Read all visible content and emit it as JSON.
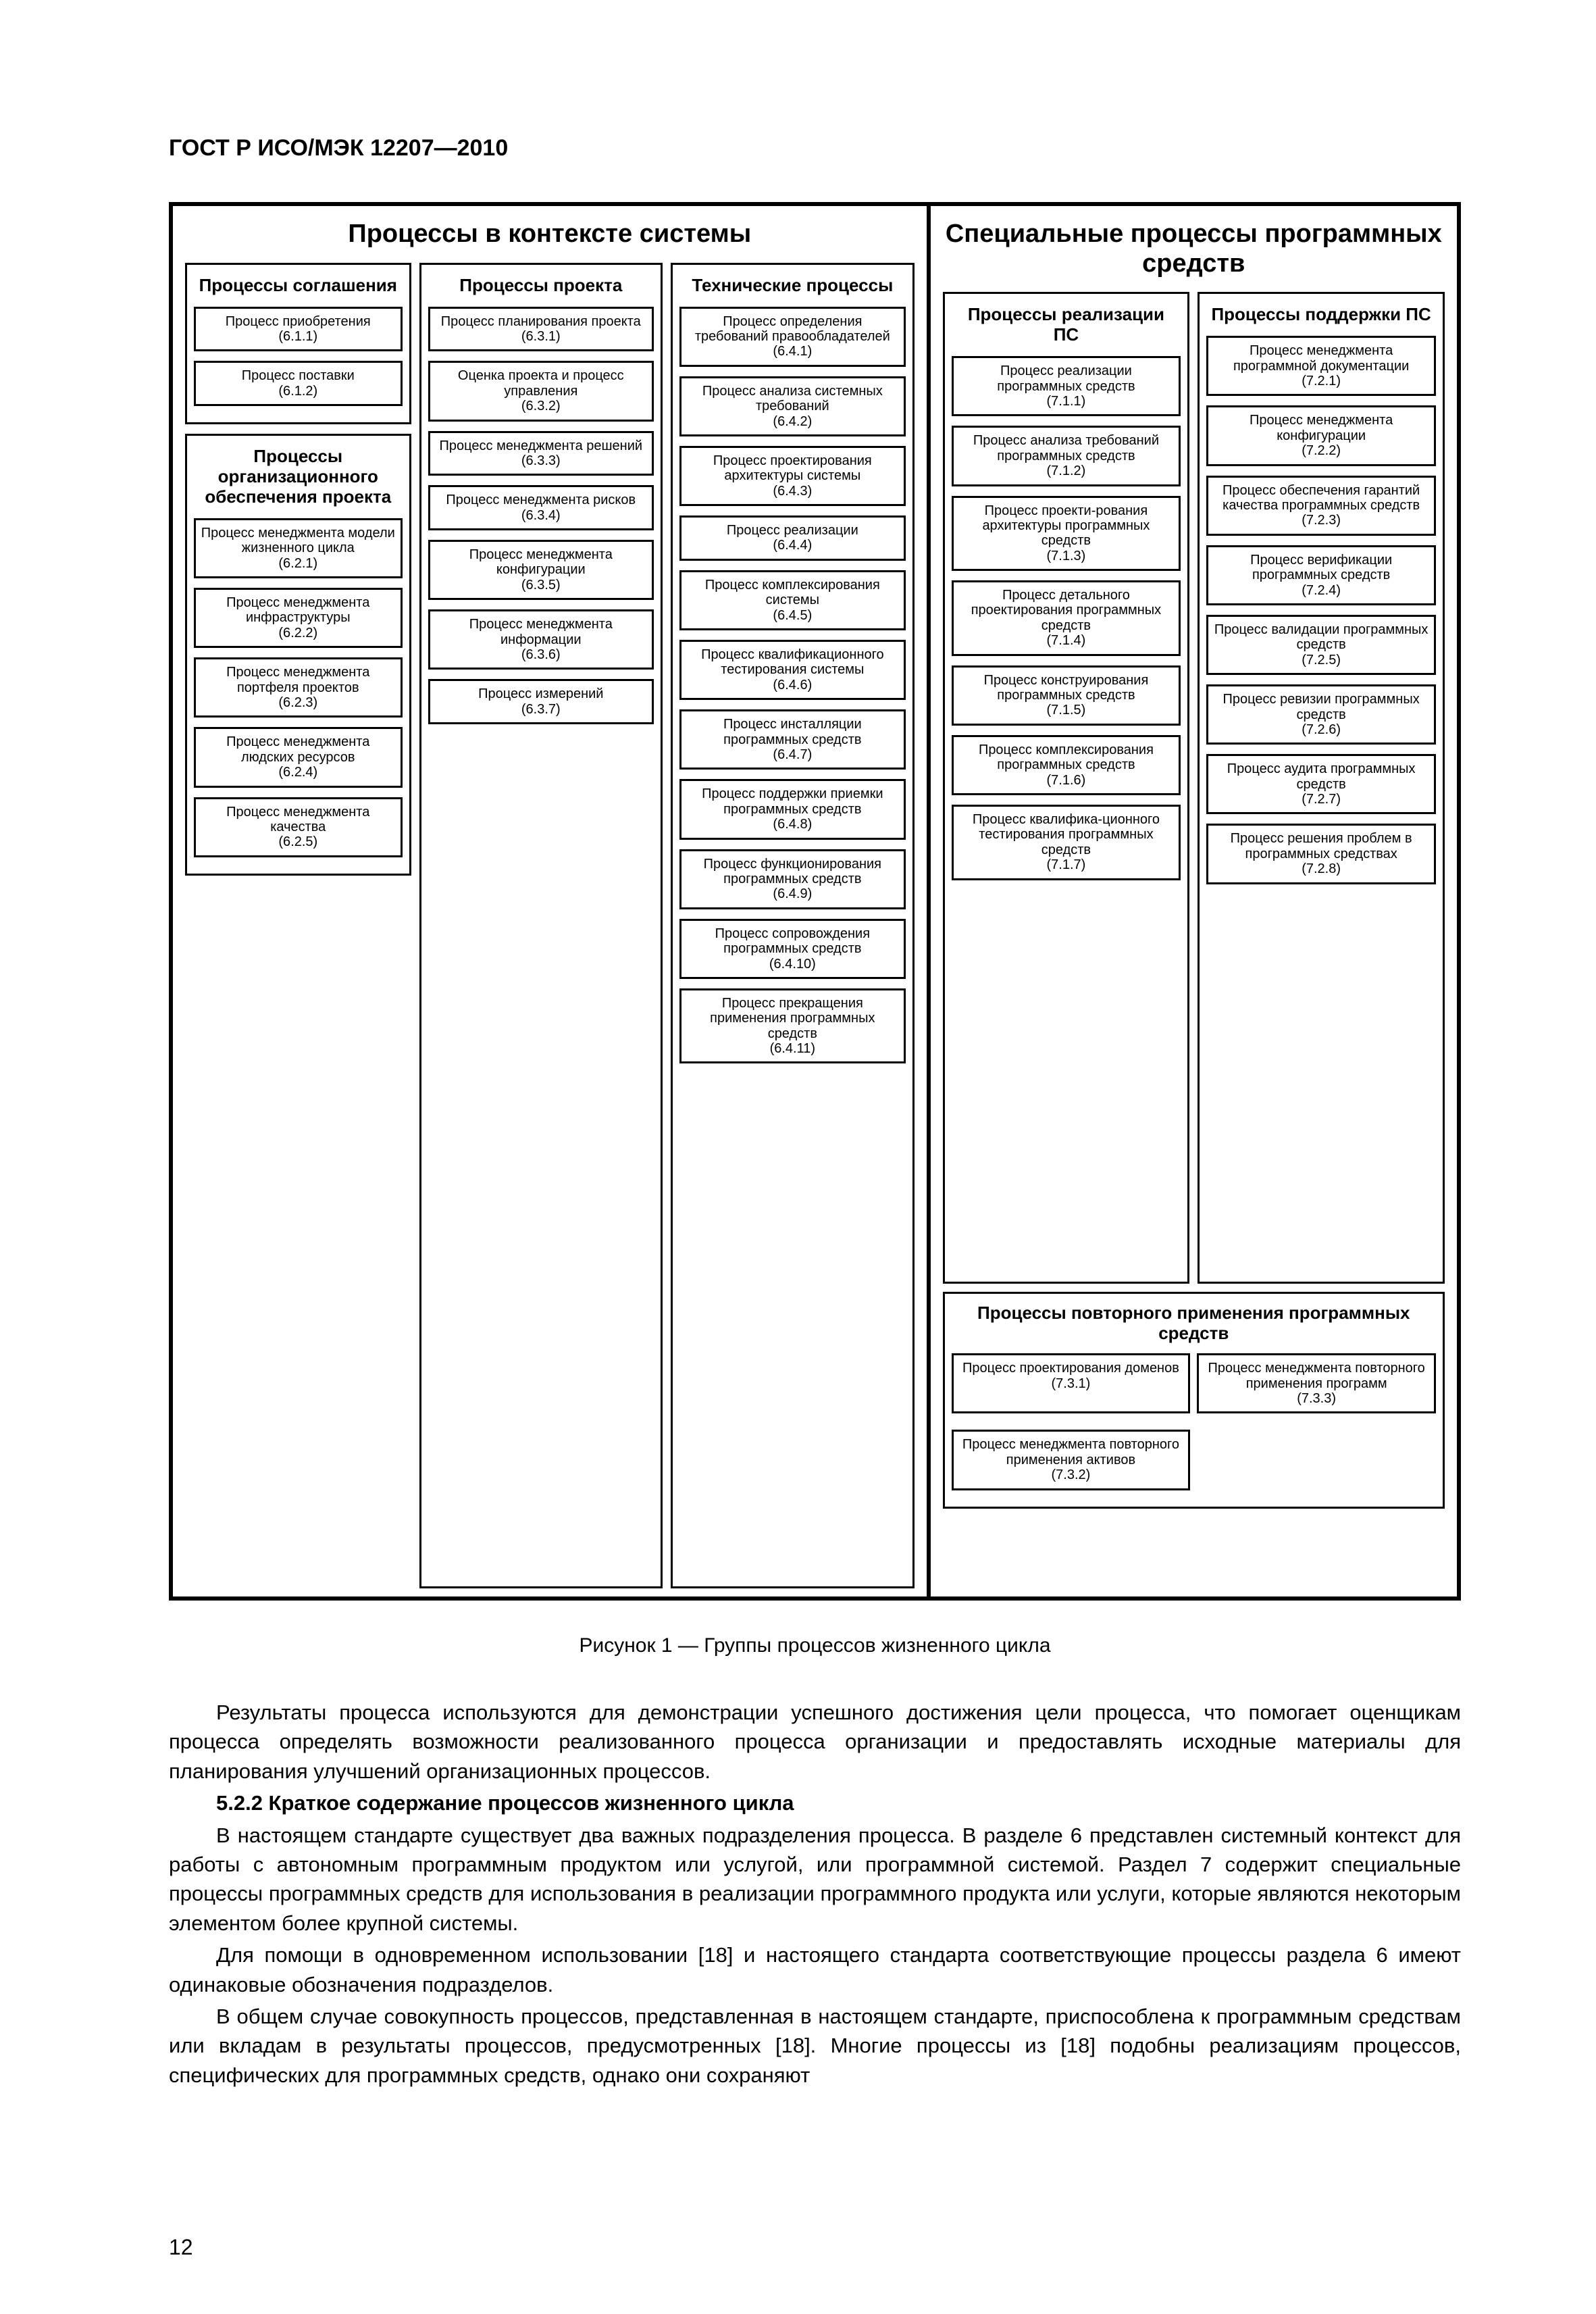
{
  "doc_header": "ГОСТ Р ИСО/МЭК 12207—2010",
  "page_number": "12",
  "diagram": {
    "left_title": "Процессы в контексте системы",
    "right_title": "Специальные процессы программных средств",
    "left": {
      "col1a": {
        "title": "Процессы соглашения",
        "items": [
          {
            "n": "Процесс приобретения",
            "r": "(6.1.1)"
          },
          {
            "n": "Процесс поставки",
            "r": "(6.1.2)"
          }
        ]
      },
      "col1b": {
        "title": "Процессы организационного обеспечения проекта",
        "items": [
          {
            "n": "Процесс менеджмента модели жизненного цикла",
            "r": "(6.2.1)"
          },
          {
            "n": "Процесс менеджмента инфраструктуры",
            "r": "(6.2.2)"
          },
          {
            "n": "Процесс менеджмента портфеля проектов",
            "r": "(6.2.3)"
          },
          {
            "n": "Процесс менеджмента людских ресурсов",
            "r": "(6.2.4)"
          },
          {
            "n": "Процесс менеджмента качества",
            "r": "(6.2.5)"
          }
        ]
      },
      "col2": {
        "title": "Процессы проекта",
        "items": [
          {
            "n": "Процесс планирования проекта",
            "r": "(6.3.1)"
          },
          {
            "n": "Оценка проекта и процесс управления",
            "r": "(6.3.2)"
          },
          {
            "n": "Процесс менеджмента решений",
            "r": "(6.3.3)"
          },
          {
            "n": "Процесс менеджмента рисков",
            "r": "(6.3.4)"
          },
          {
            "n": "Процесс менеджмента конфигурации",
            "r": "(6.3.5)"
          },
          {
            "n": "Процесс менеджмента информации",
            "r": "(6.3.6)"
          },
          {
            "n": "Процесс измерений",
            "r": "(6.3.7)"
          }
        ]
      },
      "col3": {
        "title": "Технические процессы",
        "items": [
          {
            "n": "Процесс определения требований правообладателей",
            "r": "(6.4.1)"
          },
          {
            "n": "Процесс анализа системных требований",
            "r": "(6.4.2)"
          },
          {
            "n": "Процесс проектирования архитектуры системы",
            "r": "(6.4.3)"
          },
          {
            "n": "Процесс реализации",
            "r": "(6.4.4)"
          },
          {
            "n": "Процесс комплексирования системы",
            "r": "(6.4.5)"
          },
          {
            "n": "Процесс квалификационного тестирования системы",
            "r": "(6.4.6)"
          },
          {
            "n": "Процесс инсталляции программных средств",
            "r": "(6.4.7)"
          },
          {
            "n": "Процесс поддержки приемки программных средств",
            "r": "(6.4.8)"
          },
          {
            "n": "Процесс функционирования программных средств",
            "r": "(6.4.9)"
          },
          {
            "n": "Процесс сопровождения программных средств",
            "r": "(6.4.10)"
          },
          {
            "n": "Процесс прекращения применения программных средств",
            "r": "(6.4.11)"
          }
        ]
      }
    },
    "right": {
      "col4": {
        "title": "Процессы реализации ПС",
        "items": [
          {
            "n": "Процесс реализации программных средств",
            "r": "(7.1.1)"
          },
          {
            "n": "Процесс анализа требований программных средств",
            "r": "(7.1.2)"
          },
          {
            "n": "Процесс проекти-рования архитектуры программных средств",
            "r": "(7.1.3)"
          },
          {
            "n": "Процесс детального проектирования программных средств",
            "r": "(7.1.4)"
          },
          {
            "n": "Процесс конструирования программных средств",
            "r": "(7.1.5)"
          },
          {
            "n": "Процесс комплексирования программных средств",
            "r": "(7.1.6)"
          },
          {
            "n": "Процесс квалифика-ционного тестирования программных средств",
            "r": "(7.1.7)"
          }
        ]
      },
      "col5": {
        "title": "Процессы поддержки ПС",
        "items": [
          {
            "n": "Процесс менеджмента программной документации",
            "r": "(7.2.1)"
          },
          {
            "n": "Процесс менеджмента конфигурации",
            "r": "(7.2.2)"
          },
          {
            "n": "Процесс обеспечения гарантий качества программных средств",
            "r": "(7.2.3)"
          },
          {
            "n": "Процесс верификации программных средств",
            "r": "(7.2.4)"
          },
          {
            "n": "Процесс валидации программных средств",
            "r": "(7.2.5)"
          },
          {
            "n": "Процесс ревизии программных средств",
            "r": "(7.2.6)"
          },
          {
            "n": "Процесс аудита программных средств",
            "r": "(7.2.7)"
          },
          {
            "n": "Процесс решения проблем в программных средствах",
            "r": "(7.2.8)"
          }
        ]
      },
      "reuse": {
        "title": "Процессы повторного применения программных средств",
        "items": [
          {
            "n": "Процесс проектирования доменов",
            "r": "(7.3.1)"
          },
          {
            "n": "Процесс менеджмента повторного применения программ",
            "r": "(7.3.3)"
          },
          {
            "n": "Процесс менеджмента повторного применения активов",
            "r": "(7.3.2)"
          }
        ]
      }
    }
  },
  "caption": "Рисунок 1 — Группы процессов жизненного цикла",
  "body": {
    "p1": "Результаты процесса используются для демонстрации успешного достижения цели процесса, что помогает оценщикам процесса определять возможности реализованного процесса организации и предоставлять исходные материалы для планирования улучшений организационных процессов.",
    "h522": "5.2.2 Краткое содержание процессов жизненного цикла",
    "p2": "В настоящем стандарте существует два важных подразделения процесса. В разделе 6 представлен системный контекст для работы с автономным программным продуктом или услугой, или программной системой. Раздел 7 содержит специальные процессы программных средств для использования в реализации программного продукта или услуги, которые являются некоторым элементом более крупной системы.",
    "p3": "Для помощи в одновременном использовании [18] и настоящего стандарта соответствующие процессы раздела 6 имеют одинаковые обозначения подразделов.",
    "p4": "В общем случае совокупность процессов, представленная в настоящем стандарте, приспособлена к программным средствам или вкладам в результаты процессов, предусмотренных [18]. Многие процессы из [18] подобны реализациям процессов, специфических для программных средств, однако они сохраняют"
  }
}
